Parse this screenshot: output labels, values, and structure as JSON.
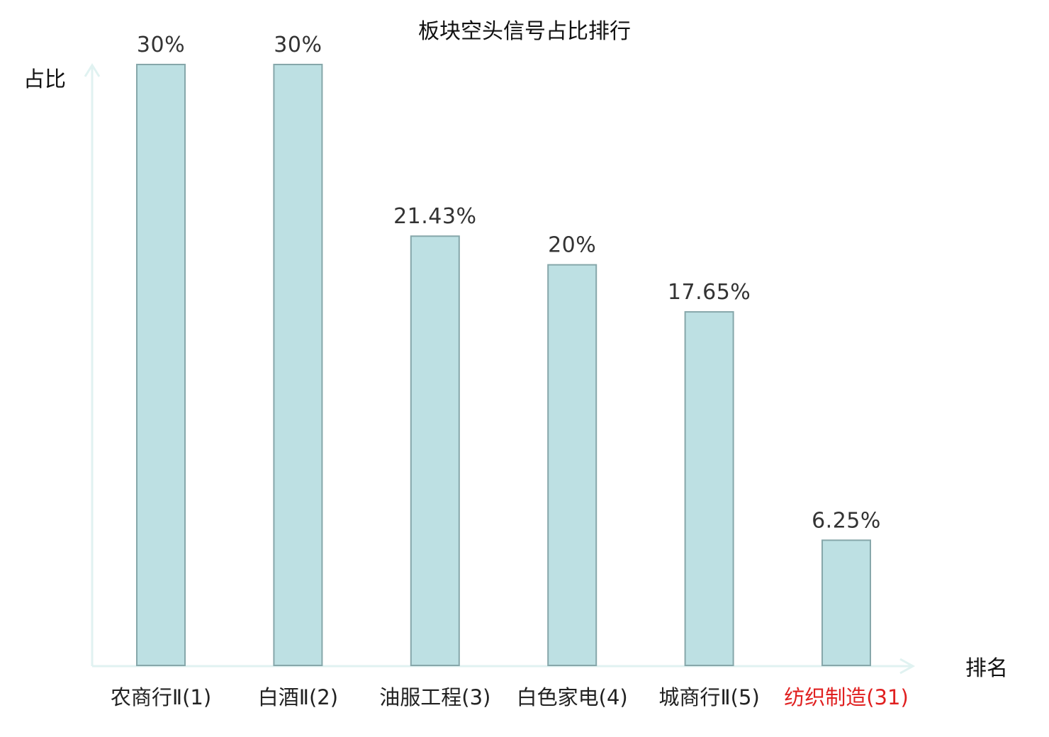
{
  "chart_data": {
    "type": "bar",
    "title": "板块空头信号占比排行",
    "ylabel": "占比",
    "xlabel": "排名",
    "categories": [
      "农商行Ⅱ(1)",
      "白酒Ⅱ(2)",
      "油服工程(3)",
      "白色家电(4)",
      "城商行Ⅱ(5)",
      "纺织制造(31)"
    ],
    "values": [
      30,
      30,
      21.43,
      20,
      17.65,
      6.25
    ],
    "value_labels": [
      "30%",
      "30%",
      "21.43%",
      "20%",
      "17.65%",
      "6.25%"
    ],
    "ylim": [
      0,
      30
    ],
    "grid": false,
    "legend": "none",
    "highlight_index": 5,
    "colors": {
      "bar_fill": "#bde0e3",
      "bar_stroke": "#86a7aa",
      "axis": "#e0f2f1",
      "category_text": "#222222",
      "highlight_text": "#e02020"
    }
  }
}
